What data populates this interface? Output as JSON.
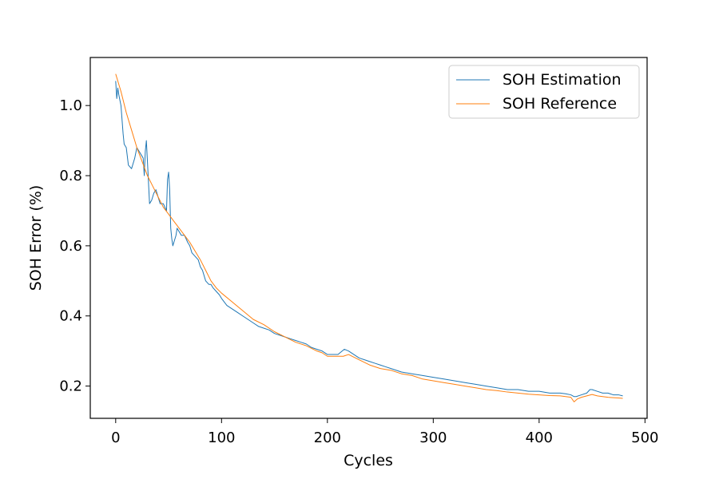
{
  "chart_data": {
    "type": "line",
    "title": "",
    "xlabel": "Cycles",
    "ylabel": "SOH Error (%)",
    "xlim": [
      -24,
      502
    ],
    "ylim": [
      0.108,
      1.137
    ],
    "xticks": [
      0,
      100,
      200,
      300,
      400,
      500
    ],
    "yticks": [
      0.2,
      0.4,
      0.6,
      0.8,
      1.0
    ],
    "xtick_labels": [
      "0",
      "100",
      "200",
      "300",
      "400",
      "500"
    ],
    "ytick_labels": [
      "0.2",
      "0.4",
      "0.6",
      "0.8",
      "1.0"
    ],
    "grid": false,
    "legend": "top-right",
    "series": [
      {
        "name": "SOH Estimation",
        "color": "#1f77b4",
        "x": [
          0,
          1,
          2,
          3,
          5,
          7,
          8,
          10,
          12,
          15,
          18,
          20,
          22,
          24,
          26,
          27,
          28,
          29,
          30,
          32,
          34,
          36,
          38,
          40,
          42,
          45,
          48,
          49,
          50,
          51,
          52,
          53,
          54,
          55,
          57,
          58,
          60,
          62,
          65,
          68,
          70,
          72,
          75,
          78,
          80,
          82,
          85,
          88,
          90,
          92,
          95,
          98,
          100,
          105,
          110,
          115,
          120,
          125,
          130,
          135,
          140,
          145,
          150,
          155,
          160,
          165,
          170,
          175,
          180,
          185,
          190,
          195,
          200,
          205,
          210,
          214,
          216,
          220,
          225,
          230,
          235,
          240,
          245,
          250,
          255,
          260,
          270,
          280,
          290,
          300,
          310,
          320,
          330,
          340,
          350,
          360,
          370,
          380,
          390,
          400,
          410,
          420,
          425,
          430,
          433,
          435,
          440,
          445,
          448,
          450,
          455,
          460,
          465,
          470,
          475,
          479
        ],
        "y": [
          1.07,
          1.02,
          1.05,
          1.03,
          1.0,
          0.92,
          0.89,
          0.88,
          0.83,
          0.82,
          0.85,
          0.88,
          0.87,
          0.86,
          0.85,
          0.8,
          0.87,
          0.9,
          0.84,
          0.72,
          0.73,
          0.75,
          0.76,
          0.74,
          0.72,
          0.72,
          0.7,
          0.79,
          0.81,
          0.76,
          0.65,
          0.62,
          0.6,
          0.61,
          0.63,
          0.65,
          0.64,
          0.63,
          0.63,
          0.61,
          0.6,
          0.58,
          0.57,
          0.56,
          0.54,
          0.53,
          0.5,
          0.49,
          0.49,
          0.48,
          0.47,
          0.46,
          0.45,
          0.43,
          0.42,
          0.41,
          0.4,
          0.39,
          0.38,
          0.37,
          0.365,
          0.36,
          0.35,
          0.345,
          0.34,
          0.335,
          0.33,
          0.325,
          0.32,
          0.31,
          0.305,
          0.3,
          0.29,
          0.29,
          0.29,
          0.3,
          0.305,
          0.3,
          0.29,
          0.28,
          0.275,
          0.27,
          0.265,
          0.26,
          0.255,
          0.25,
          0.24,
          0.235,
          0.23,
          0.225,
          0.22,
          0.215,
          0.21,
          0.205,
          0.2,
          0.195,
          0.19,
          0.19,
          0.185,
          0.185,
          0.18,
          0.18,
          0.178,
          0.175,
          0.17,
          0.17,
          0.175,
          0.18,
          0.19,
          0.19,
          0.185,
          0.18,
          0.18,
          0.175,
          0.175,
          0.172
        ]
      },
      {
        "name": "SOH Reference",
        "color": "#ff7f0e",
        "x": [
          0,
          5,
          10,
          15,
          20,
          25,
          30,
          35,
          40,
          45,
          50,
          55,
          60,
          65,
          70,
          75,
          80,
          85,
          90,
          95,
          100,
          110,
          120,
          130,
          140,
          150,
          160,
          170,
          180,
          190,
          195,
          200,
          205,
          210,
          215,
          220,
          230,
          240,
          250,
          260,
          270,
          280,
          290,
          300,
          310,
          320,
          330,
          340,
          350,
          360,
          370,
          380,
          390,
          400,
          410,
          420,
          425,
          430,
          433,
          436,
          440,
          445,
          450,
          455,
          460,
          465,
          470,
          475,
          479
        ],
        "y": [
          1.09,
          1.04,
          0.98,
          0.93,
          0.88,
          0.84,
          0.8,
          0.77,
          0.74,
          0.71,
          0.69,
          0.67,
          0.65,
          0.63,
          0.61,
          0.585,
          0.56,
          0.53,
          0.5,
          0.48,
          0.465,
          0.44,
          0.415,
          0.39,
          0.375,
          0.355,
          0.34,
          0.325,
          0.315,
          0.3,
          0.295,
          0.285,
          0.285,
          0.285,
          0.285,
          0.29,
          0.275,
          0.26,
          0.25,
          0.245,
          0.235,
          0.23,
          0.22,
          0.215,
          0.21,
          0.205,
          0.2,
          0.195,
          0.19,
          0.187,
          0.183,
          0.18,
          0.177,
          0.175,
          0.173,
          0.172,
          0.17,
          0.168,
          0.155,
          0.163,
          0.168,
          0.172,
          0.176,
          0.172,
          0.17,
          0.168,
          0.167,
          0.166,
          0.165
        ]
      }
    ]
  }
}
